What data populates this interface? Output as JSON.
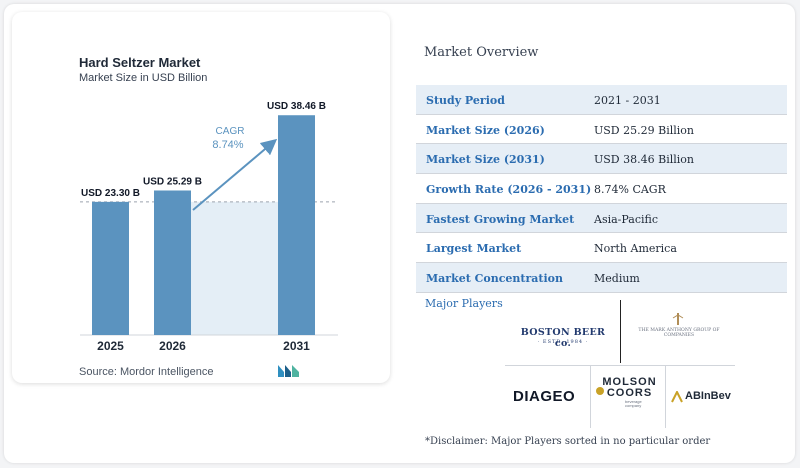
{
  "chart_data": {
    "type": "bar",
    "title": "Hard Seltzer Market",
    "subtitle": "Market Size in USD Billion",
    "categories": [
      "2025",
      "2026",
      "2031"
    ],
    "values": [
      23.3,
      25.29,
      38.46
    ],
    "value_labels": [
      "USD 23.30 B",
      "USD 25.29 B",
      "USD 38.46 B"
    ],
    "ylim": [
      0,
      42
    ],
    "cagr_label": "CAGR",
    "cagr_value": "8.74%",
    "reference_line_value": 23.3,
    "colors": {
      "bar": "#5b93bf",
      "area": "#e4eef6",
      "arrow": "#5b93bf"
    }
  },
  "source": "Source: Mordor Intelligence",
  "overview": {
    "title": "Market Overview",
    "rows": [
      {
        "label": "Study Period",
        "value": "2021 - 2031"
      },
      {
        "label": "Market Size (2026)",
        "value": "USD 25.29 Billion"
      },
      {
        "label": "Market Size (2031)",
        "value": "USD 38.46 Billion"
      },
      {
        "label": "Growth Rate (2026 - 2031)",
        "value": "8.74% CAGR"
      },
      {
        "label": "Fastest Growing Market",
        "value": "Asia-Pacific"
      },
      {
        "label": "Largest Market",
        "value": "North America"
      },
      {
        "label": "Market Concentration",
        "value": "Medium"
      }
    ]
  },
  "major_players": {
    "title": "Major Players",
    "logos": {
      "boston": "BOSTON BEER co.",
      "boston_sub": "· ESTD. 1984 ·",
      "mark_anthony": "THE MARK ANTHONY GROUP OF COMPANIES",
      "diageo": "DIAGEO",
      "molson_1": "MOLSON",
      "molson_2": "COORS",
      "molson_sub": "beverage company",
      "abinbev": "ABInBev"
    }
  },
  "disclaimer": "*Disclaimer: Major Players sorted in no particular order"
}
